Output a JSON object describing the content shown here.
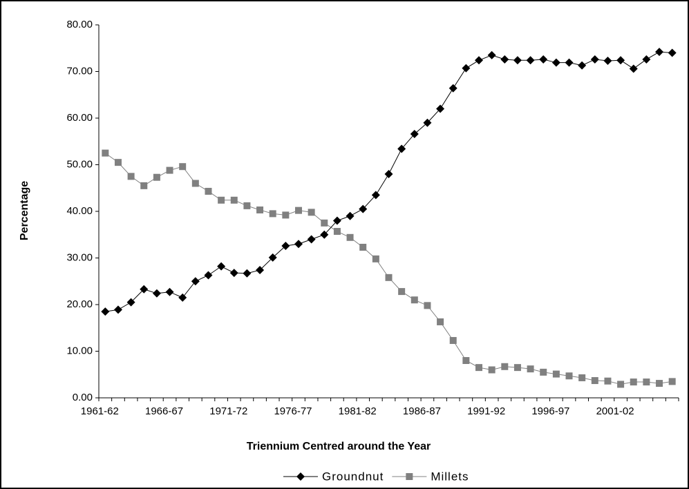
{
  "chart_data": {
    "type": "line",
    "x_label": "Triennium Centred around the Year",
    "y_label": "Percentage",
    "categories": [
      "1961-62",
      null,
      null,
      null,
      null,
      "1966-67",
      null,
      null,
      null,
      null,
      "1971-72",
      null,
      null,
      null,
      null,
      "1976-77",
      null,
      null,
      null,
      null,
      "1981-82",
      null,
      null,
      null,
      null,
      "1986-87",
      null,
      null,
      null,
      null,
      "1991-92",
      null,
      null,
      null,
      null,
      "1996-97",
      null,
      null,
      null,
      null,
      "2001-02",
      null,
      null,
      null,
      null
    ],
    "series": [
      {
        "name": "Groundnut",
        "color": "#000000",
        "marker": "diamond",
        "values": [
          18.5,
          18.9,
          20.5,
          23.3,
          22.4,
          22.7,
          21.5,
          25,
          26.3,
          28.2,
          26.8,
          26.7,
          27.4,
          30.1,
          32.6,
          33,
          34,
          35,
          38,
          39,
          40.5,
          43.5,
          48,
          53.4,
          56.6,
          59,
          62,
          66.4,
          70.7,
          72.4,
          73.5,
          72.6,
          72.4,
          72.4,
          72.6,
          71.9,
          71.9,
          71.3,
          72.6,
          72.3,
          72.4,
          70.6,
          72.6,
          74.2,
          74
        ]
      },
      {
        "name": "Millets",
        "color": "#808080",
        "marker": "square",
        "values": [
          52.5,
          50.5,
          47.5,
          45.5,
          47.3,
          48.8,
          49.6,
          46,
          44.3,
          42.4,
          42.4,
          41.2,
          40.3,
          39.5,
          39.2,
          40.2,
          39.8,
          37.5,
          35.7,
          34.4,
          32.3,
          29.8,
          25.8,
          22.8,
          21,
          19.8,
          16.3,
          12.3,
          8,
          6.5,
          6,
          6.7,
          6.5,
          6.2,
          5.5,
          5.1,
          4.7,
          4.3,
          3.7,
          3.6,
          2.9,
          3.4,
          3.4,
          3.1,
          3.5
        ]
      }
    ],
    "ylim": [
      0,
      80
    ],
    "yticks": [
      {
        "value": 0,
        "label": "0.00"
      },
      {
        "value": 10,
        "label": "10.00"
      },
      {
        "value": 20,
        "label": "20.00"
      },
      {
        "value": 30,
        "label": "30.00"
      },
      {
        "value": 40,
        "label": "40.00"
      },
      {
        "value": 50,
        "label": "50.00"
      },
      {
        "value": 60,
        "label": "60.00"
      },
      {
        "value": 70,
        "label": "70.00"
      },
      {
        "value": 80,
        "label": "80.00"
      }
    ],
    "grid": false,
    "legend": "bottom"
  }
}
